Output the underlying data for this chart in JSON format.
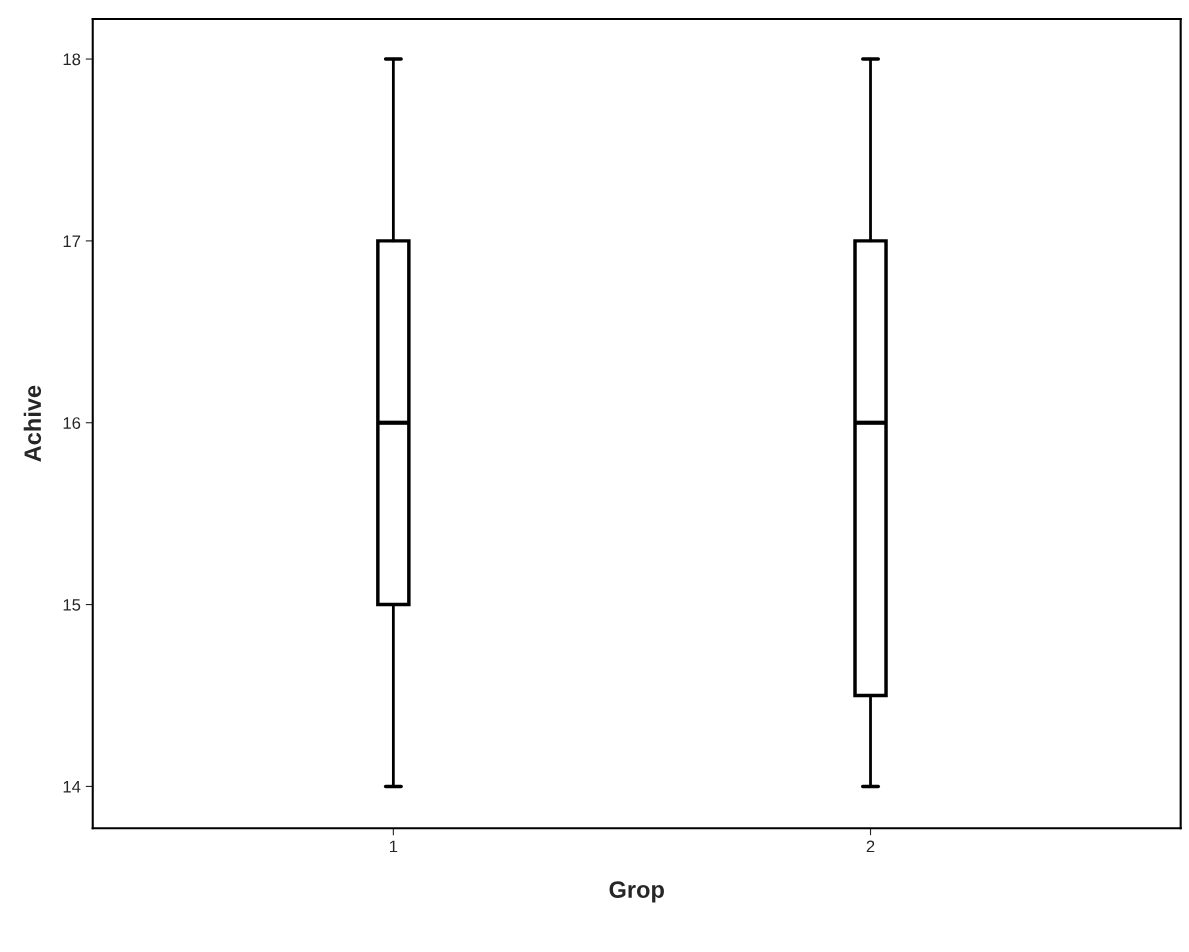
{
  "chart_data": {
    "type": "box",
    "xlabel": "Grop",
    "ylabel": "Achive",
    "categories": [
      "1",
      "2"
    ],
    "boxes": [
      {
        "low": 14,
        "q1": 15,
        "median": 16,
        "q3": 17,
        "high": 18
      },
      {
        "low": 14,
        "q1": 14.5,
        "median": 16,
        "q3": 17,
        "high": 18
      }
    ],
    "ylim": [
      13.77,
      18.22
    ],
    "yticks": [
      14,
      15,
      16,
      17,
      18
    ],
    "grid": false,
    "legend": false
  }
}
